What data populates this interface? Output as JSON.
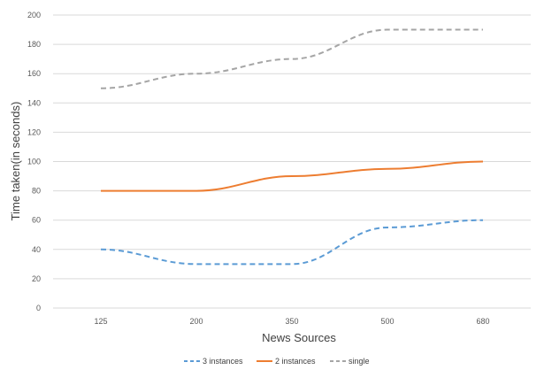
{
  "chart_data": {
    "type": "line",
    "title": "",
    "xlabel": "News Sources",
    "ylabel": "Time taken(in seconds)",
    "categories": [
      "125",
      "200",
      "350",
      "500",
      "680"
    ],
    "ylim": [
      0,
      200
    ],
    "yticks": [
      0,
      20,
      40,
      60,
      80,
      100,
      120,
      140,
      160,
      180,
      200
    ],
    "grid": true,
    "legend_position": "bottom",
    "series": [
      {
        "name": "3 instances",
        "values": [
          40,
          30,
          30,
          55,
          60
        ],
        "color": "#5b9bd5",
        "dash": "dashed"
      },
      {
        "name": "2 instances",
        "values": [
          80,
          80,
          90,
          95,
          100
        ],
        "color": "#ed7d31",
        "dash": "solid"
      },
      {
        "name": "single",
        "values": [
          150,
          160,
          170,
          190,
          190
        ],
        "color": "#a5a5a5",
        "dash": "dashed"
      }
    ]
  }
}
